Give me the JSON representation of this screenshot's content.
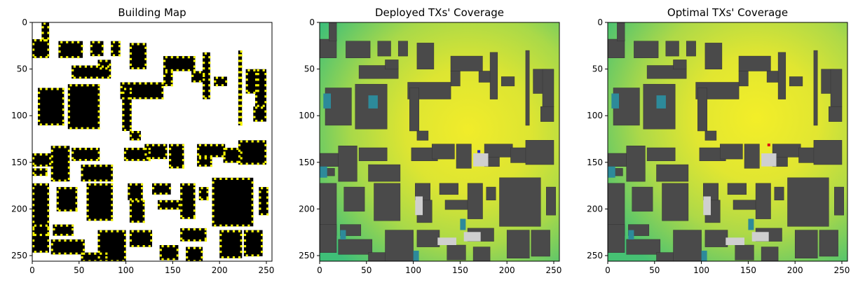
{
  "chart_data": [
    {
      "type": "heatmap",
      "title": "Building Map",
      "xlim": [
        0,
        256
      ],
      "ylim": [
        256,
        0
      ],
      "xticks": [
        0,
        50,
        100,
        150,
        200,
        250
      ],
      "yticks": [
        0,
        50,
        100,
        150,
        200,
        250
      ],
      "description_colors": {
        "building": "#000000",
        "candidate_tx": "#f5f500",
        "free_space": "#ffffff"
      }
    },
    {
      "type": "heatmap",
      "title": "Deployed TXs' Coverage",
      "xlim": [
        0,
        256
      ],
      "ylim": [
        256,
        0
      ],
      "xticks": [
        0,
        50,
        100,
        150,
        200,
        250
      ],
      "yticks": [
        0,
        50,
        100,
        150,
        200,
        250
      ],
      "tx_marker": {
        "x": 170,
        "y": 138,
        "color": "#1f1fd0"
      }
    },
    {
      "type": "heatmap",
      "title": "Optimal TXs' Coverage",
      "xlim": [
        0,
        256
      ],
      "ylim": [
        256,
        0
      ],
      "xticks": [
        0,
        50,
        100,
        150,
        200,
        250
      ],
      "yticks": [
        0,
        50,
        100,
        150,
        200,
        250
      ],
      "tx_marker": {
        "x": 172,
        "y": 131,
        "color": "#e01010"
      }
    }
  ]
}
